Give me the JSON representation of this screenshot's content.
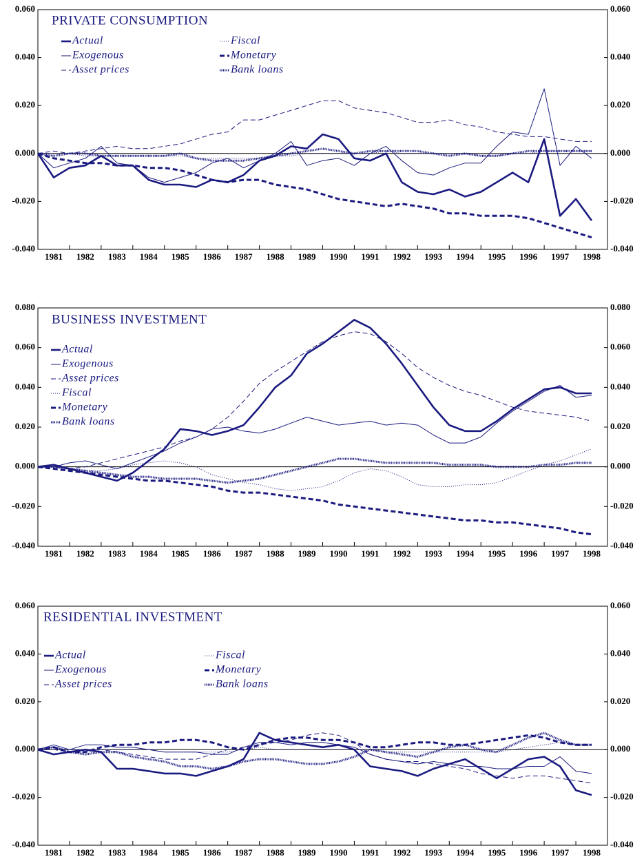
{
  "chart_data": [
    {
      "type": "line",
      "title": "PRIVATE CONSUMPTION",
      "x": [
        1981,
        1981.5,
        1982,
        1982.5,
        1983,
        1983.5,
        1984,
        1984.5,
        1985,
        1985.5,
        1986,
        1986.5,
        1987,
        1987.5,
        1988,
        1988.5,
        1989,
        1989.5,
        1990,
        1990.5,
        1991,
        1991.5,
        1992,
        1992.5,
        1993,
        1993.5,
        1994,
        1994.5,
        1995,
        1995.5,
        1996,
        1996.5,
        1997,
        1997.5,
        1998,
        1998.5
      ],
      "xlim": [
        1981,
        1999
      ],
      "xticks": [
        1981,
        1982,
        1983,
        1984,
        1985,
        1986,
        1987,
        1988,
        1989,
        1990,
        1991,
        1992,
        1993,
        1994,
        1995,
        1996,
        1997,
        1998
      ],
      "ylim": [
        -0.04,
        0.06
      ],
      "yticks": [
        {
          "value": -0.04,
          "label": "-0.040"
        },
        {
          "value": -0.02,
          "label": "-0.020"
        },
        {
          "value": 0,
          "label": "0.000"
        },
        {
          "value": 0.02,
          "label": "0.020"
        },
        {
          "value": 0.04,
          "label": "0.040"
        },
        {
          "value": 0.06,
          "label": "0.060"
        }
      ],
      "series": [
        {
          "name": "Actual",
          "color": "#1a1a80",
          "values": [
            0,
            -0.01,
            -0.006,
            -0.005,
            -0.001,
            -0.005,
            -0.005,
            -0.011,
            -0.013,
            -0.013,
            -0.014,
            -0.011,
            -0.012,
            -0.009,
            -0.003,
            -0.001,
            0.003,
            0.002,
            0.008,
            0.006,
            -0.002,
            -0.003,
            0.0,
            -0.012,
            -0.016,
            -0.017,
            -0.015,
            -0.018,
            -0.016,
            -0.012,
            -0.008,
            -0.012,
            0.006,
            -0.026,
            -0.019,
            -0.028
          ]
        },
        {
          "name": "Exogenous",
          "color": "#1a1a80",
          "values": [
            0,
            -0.006,
            -0.004,
            -0.002,
            0.003,
            -0.004,
            -0.005,
            -0.01,
            -0.012,
            -0.01,
            -0.008,
            -0.004,
            -0.002,
            -0.006,
            -0.003,
            0.0,
            0.005,
            -0.005,
            -0.003,
            -0.002,
            -0.005,
            0.0,
            0.003,
            -0.003,
            -0.008,
            -0.009,
            -0.006,
            -0.004,
            -0.004,
            0.003,
            0.009,
            0.008,
            0.027,
            -0.005,
            0.003,
            -0.002
          ]
        },
        {
          "name": "Asset prices",
          "color": "#1a1a80",
          "values": [
            0,
            0.001,
            0.0,
            0.001,
            0.002,
            0.003,
            0.002,
            0.002,
            0.003,
            0.004,
            0.006,
            0.008,
            0.009,
            0.014,
            0.014,
            0.016,
            0.018,
            0.02,
            0.022,
            0.022,
            0.019,
            0.018,
            0.017,
            0.015,
            0.013,
            0.013,
            0.014,
            0.012,
            0.011,
            0.009,
            0.008,
            0.007,
            0.007,
            0.006,
            0.005,
            0.005
          ]
        },
        {
          "name": "Fiscal",
          "color": "#1a1a80",
          "values": [
            0,
            0,
            0,
            -0.001,
            -0.001,
            -0.001,
            -0.001,
            -0.001,
            -0.001,
            -0.001,
            -0.002,
            -0.002,
            -0.002,
            -0.002,
            -0.002,
            -0.001,
            -0.001,
            0,
            0,
            0,
            0,
            0,
            0.001,
            0,
            0,
            0,
            0,
            0,
            -0.001,
            -0.001,
            0,
            0,
            0.001,
            0.001,
            0.001,
            0.001
          ]
        },
        {
          "name": "Monetary",
          "color": "#1a1a80",
          "values": [
            0,
            -0.002,
            -0.003,
            -0.004,
            -0.004,
            -0.005,
            -0.005,
            -0.006,
            -0.006,
            -0.007,
            -0.009,
            -0.011,
            -0.012,
            -0.011,
            -0.011,
            -0.013,
            -0.014,
            -0.015,
            -0.017,
            -0.019,
            -0.02,
            -0.021,
            -0.022,
            -0.021,
            -0.022,
            -0.023,
            -0.025,
            -0.025,
            -0.026,
            -0.026,
            -0.026,
            -0.027,
            -0.029,
            -0.031,
            -0.033,
            -0.035
          ]
        },
        {
          "name": "Bank loans",
          "color": "#1a1a80",
          "values": [
            0,
            -0.001,
            0,
            0,
            -0.001,
            -0.001,
            -0.001,
            -0.001,
            -0.001,
            0,
            -0.002,
            -0.003,
            -0.003,
            -0.003,
            -0.002,
            -0.001,
            0,
            0.001,
            0.002,
            0.001,
            0.0,
            0.001,
            0.001,
            0.001,
            0.001,
            0,
            -0.001,
            0,
            -0.001,
            -0.001,
            0,
            0.001,
            0.001,
            0.001,
            0.001,
            0.001
          ]
        }
      ]
    },
    {
      "type": "line",
      "title": "BUSINESS INVESTMENT",
      "x": [
        1981,
        1981.5,
        1982,
        1982.5,
        1983,
        1983.5,
        1984,
        1984.5,
        1985,
        1985.5,
        1986,
        1986.5,
        1987,
        1987.5,
        1988,
        1988.5,
        1989,
        1989.5,
        1990,
        1990.5,
        1991,
        1991.5,
        1992,
        1992.5,
        1993,
        1993.5,
        1994,
        1994.5,
        1995,
        1995.5,
        1996,
        1996.5,
        1997,
        1997.5,
        1998,
        1998.5
      ],
      "xlim": [
        1981,
        1999
      ],
      "xticks": [
        1981,
        1982,
        1983,
        1984,
        1985,
        1986,
        1987,
        1988,
        1989,
        1990,
        1991,
        1992,
        1993,
        1994,
        1995,
        1996,
        1997,
        1998
      ],
      "ylim": [
        -0.04,
        0.08
      ],
      "yticks": [
        {
          "value": -0.04,
          "label": "-0.040"
        },
        {
          "value": -0.02,
          "label": "-0.020"
        },
        {
          "value": 0,
          "label": "0.000"
        },
        {
          "value": 0.02,
          "label": "0.020"
        },
        {
          "value": 0.04,
          "label": "0.040"
        },
        {
          "value": 0.06,
          "label": "0.060"
        },
        {
          "value": 0.08,
          "label": "0.080"
        }
      ],
      "series": [
        {
          "name": "Actual",
          "color": "#1a1a80",
          "values": [
            0,
            0.001,
            -0.001,
            -0.003,
            -0.005,
            -0.007,
            -0.003,
            0.003,
            0.009,
            0.019,
            0.018,
            0.016,
            0.018,
            0.021,
            0.03,
            0.04,
            0.046,
            0.057,
            0.062,
            0.068,
            0.074,
            0.07,
            0.062,
            0.052,
            0.041,
            0.03,
            0.021,
            0.018,
            0.018,
            0.023,
            0.029,
            0.034,
            0.039,
            0.04,
            0.037,
            0.037
          ]
        },
        {
          "name": "Exogenous",
          "color": "#1a1a80",
          "values": [
            0,
            0,
            0.002,
            0.003,
            0.001,
            -0.001,
            0.002,
            0.005,
            0.008,
            0.012,
            0.015,
            0.019,
            0.02,
            0.018,
            0.017,
            0.019,
            0.022,
            0.025,
            0.023,
            0.021,
            0.022,
            0.023,
            0.021,
            0.022,
            0.021,
            0.016,
            0.012,
            0.012,
            0.015,
            0.022,
            0.028,
            0.033,
            0.038,
            0.041,
            0.035,
            0.036
          ]
        },
        {
          "name": "Asset prices",
          "color": "#1a1a80",
          "values": [
            0,
            0,
            -0.001,
            0,
            0.002,
            0.004,
            0.006,
            0.008,
            0.01,
            0.013,
            0.015,
            0.019,
            0.025,
            0.033,
            0.042,
            0.048,
            0.053,
            0.058,
            0.063,
            0.066,
            0.068,
            0.067,
            0.063,
            0.057,
            0.05,
            0.045,
            0.041,
            0.038,
            0.036,
            0.033,
            0.03,
            0.028,
            0.027,
            0.026,
            0.025,
            0.023
          ]
        },
        {
          "name": "Fiscal",
          "color": "#1a1a80",
          "values": [
            0,
            0,
            -0.001,
            -0.002,
            -0.002,
            -0.001,
            0.001,
            0.002,
            0.003,
            0.002,
            0,
            -0.004,
            -0.006,
            -0.008,
            -0.009,
            -0.011,
            -0.012,
            -0.011,
            -0.01,
            -0.007,
            -0.003,
            -0.001,
            -0.002,
            -0.005,
            -0.009,
            -0.01,
            -0.01,
            -0.009,
            -0.009,
            -0.008,
            -0.005,
            -0.002,
            0.001,
            0.003,
            0.006,
            0.009
          ]
        },
        {
          "name": "Monetary",
          "color": "#1a1a80",
          "values": [
            0,
            -0.001,
            -0.002,
            -0.003,
            -0.004,
            -0.005,
            -0.006,
            -0.007,
            -0.007,
            -0.008,
            -0.009,
            -0.01,
            -0.012,
            -0.013,
            -0.013,
            -0.014,
            -0.015,
            -0.016,
            -0.017,
            -0.019,
            -0.02,
            -0.021,
            -0.022,
            -0.023,
            -0.024,
            -0.025,
            -0.026,
            -0.027,
            -0.027,
            -0.028,
            -0.028,
            -0.029,
            -0.03,
            -0.031,
            -0.033,
            -0.034
          ]
        },
        {
          "name": "Bank loans",
          "color": "#1a1a80",
          "values": [
            0,
            0,
            -0.001,
            -0.002,
            -0.003,
            -0.004,
            -0.005,
            -0.005,
            -0.006,
            -0.006,
            -0.006,
            -0.007,
            -0.008,
            -0.007,
            -0.006,
            -0.004,
            -0.002,
            0,
            0.002,
            0.004,
            0.004,
            0.003,
            0.002,
            0.002,
            0.002,
            0.002,
            0.001,
            0.001,
            0.001,
            0.0,
            0.0,
            0.0,
            0.001,
            0.001,
            0.002,
            0.002
          ]
        }
      ]
    },
    {
      "type": "line",
      "title": "RESIDENTIAL INVESTMENT",
      "x": [
        1981,
        1981.5,
        1982,
        1982.5,
        1983,
        1983.5,
        1984,
        1984.5,
        1985,
        1985.5,
        1986,
        1986.5,
        1987,
        1987.5,
        1988,
        1988.5,
        1989,
        1989.5,
        1990,
        1990.5,
        1991,
        1991.5,
        1992,
        1992.5,
        1993,
        1993.5,
        1994,
        1994.5,
        1995,
        1995.5,
        1996,
        1996.5,
        1997,
        1997.5,
        1998,
        1998.5
      ],
      "xlim": [
        1981,
        1999
      ],
      "xticks": [
        1981,
        1982,
        1983,
        1984,
        1985,
        1986,
        1987,
        1988,
        1989,
        1990,
        1991,
        1992,
        1993,
        1994,
        1995,
        1996,
        1997,
        1998
      ],
      "ylim": [
        -0.04,
        0.06
      ],
      "yticks": [
        {
          "value": -0.04,
          "label": "-0.040"
        },
        {
          "value": -0.02,
          "label": "-0.020"
        },
        {
          "value": 0,
          "label": "0.000"
        },
        {
          "value": 0.02,
          "label": "0.020"
        },
        {
          "value": 0.04,
          "label": "0.040"
        },
        {
          "value": 0.06,
          "label": "0.060"
        }
      ],
      "series": [
        {
          "name": "Actual",
          "color": "#1a1a80",
          "values": [
            0,
            -0.002,
            -0.001,
            0,
            -0.001,
            -0.008,
            -0.008,
            -0.009,
            -0.01,
            -0.01,
            -0.011,
            -0.009,
            -0.007,
            -0.004,
            0.007,
            0.004,
            0.003,
            0.002,
            0.001,
            0.002,
            0.0,
            -0.007,
            -0.008,
            -0.009,
            -0.011,
            -0.008,
            -0.006,
            -0.004,
            -0.008,
            -0.012,
            -0.008,
            -0.004,
            -0.003,
            -0.007,
            -0.017,
            -0.019
          ]
        },
        {
          "name": "Exogenous",
          "color": "#1a1a80",
          "values": [
            0,
            0.002,
            0.0,
            0.002,
            0.002,
            0.001,
            0.001,
            0,
            -0.001,
            -0.001,
            -0.001,
            -0.002,
            -0.002,
            0.001,
            0.003,
            0.003,
            0.002,
            0.003,
            0.003,
            0.002,
            0.001,
            -0.002,
            -0.004,
            -0.005,
            -0.006,
            -0.005,
            -0.006,
            -0.007,
            -0.007,
            -0.008,
            -0.008,
            -0.007,
            -0.007,
            -0.003,
            -0.009,
            -0.01
          ]
        },
        {
          "name": "Asset prices",
          "color": "#1a1a80",
          "values": [
            0,
            0,
            -0.001,
            -0.001,
            0,
            -0.001,
            -0.002,
            -0.003,
            -0.004,
            -0.004,
            -0.004,
            -0.002,
            0,
            0.001,
            0.002,
            0.003,
            0.004,
            0.006,
            0.007,
            0.006,
            0.003,
            -0.002,
            -0.004,
            -0.005,
            -0.005,
            -0.006,
            -0.007,
            -0.008,
            -0.01,
            -0.011,
            -0.012,
            -0.011,
            -0.011,
            -0.012,
            -0.013,
            -0.014
          ]
        },
        {
          "name": "Fiscal",
          "color": "#1a1a80",
          "values": [
            0,
            0.001,
            0,
            0,
            0,
            0,
            0,
            0,
            -0.001,
            -0.001,
            -0.001,
            -0.001,
            -0.001,
            0,
            0.001,
            0,
            0,
            0,
            0,
            0,
            0,
            0,
            -0.001,
            -0.001,
            -0.001,
            -0.001,
            -0.001,
            -0.001,
            -0.001,
            -0.001,
            0,
            0.001,
            0.002,
            0.003,
            0.002,
            0.002
          ]
        },
        {
          "name": "Monetary",
          "color": "#1a1a80",
          "values": [
            0,
            0.001,
            -0.001,
            -0.001,
            0.001,
            0.002,
            0.002,
            0.003,
            0.003,
            0.004,
            0.004,
            0.003,
            0.001,
            0.0,
            0.002,
            0.004,
            0.005,
            0.005,
            0.004,
            0.004,
            0.003,
            0.001,
            0.001,
            0.002,
            0.003,
            0.003,
            0.002,
            0.002,
            0.003,
            0.004,
            0.005,
            0.006,
            0.005,
            0.003,
            0.002,
            0.002
          ]
        },
        {
          "name": "Bank loans",
          "color": "#1a1a80",
          "values": [
            0,
            0.001,
            -0.001,
            -0.002,
            -0.001,
            -0.001,
            -0.003,
            -0.004,
            -0.005,
            -0.007,
            -0.007,
            -0.008,
            -0.007,
            -0.005,
            -0.004,
            -0.004,
            -0.005,
            -0.006,
            -0.006,
            -0.005,
            -0.003,
            0,
            -0.001,
            -0.002,
            -0.003,
            -0.001,
            0.001,
            0.002,
            0,
            -0.001,
            0.002,
            0.005,
            0.007,
            0.004,
            0.002,
            0.002
          ]
        }
      ]
    }
  ]
}
